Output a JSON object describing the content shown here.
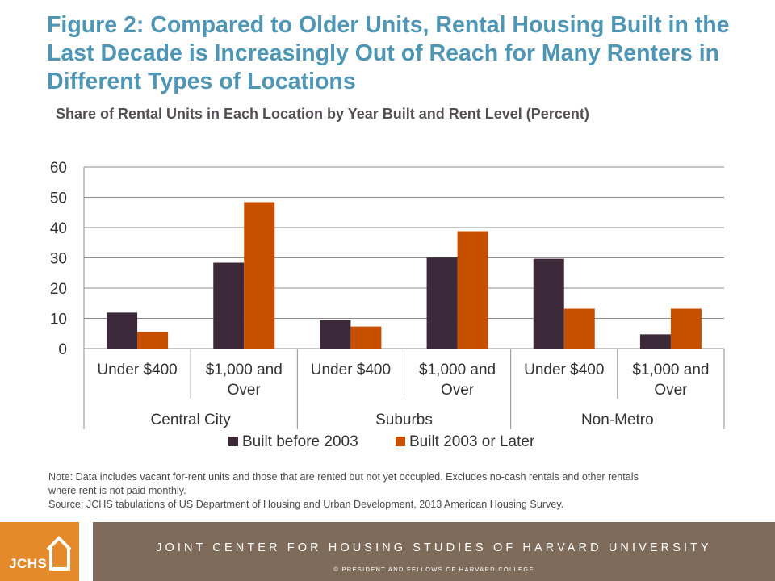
{
  "title": "Figure 2: Compared to Older Units, Rental Housing Built in the Last Decade is Increasingly Out of Reach for Many Renters in Different Types of Locations",
  "subtitle": "Share of Rental Units in Each Location by Year Built and Rent Level (Percent)",
  "chart_data": {
    "type": "bar",
    "title": "Share of Rental Units in Each Location by Year Built and Rent Level (Percent)",
    "xlabel": "",
    "ylabel": "",
    "ylim": [
      0,
      60
    ],
    "yticks": [
      0,
      10,
      20,
      30,
      40,
      50,
      60
    ],
    "grid": true,
    "legend_position": "bottom",
    "groups": [
      {
        "label": "Central City",
        "categories": [
          [
            "Under $400"
          ],
          [
            "$1,000 and",
            "Over"
          ]
        ]
      },
      {
        "label": "Suburbs",
        "categories": [
          [
            "Under $400"
          ],
          [
            "$1,000 and",
            "Over"
          ]
        ]
      },
      {
        "label": "Non-Metro",
        "categories": [
          [
            "Under $400"
          ],
          [
            "$1,000 and",
            "Over"
          ]
        ]
      }
    ],
    "categories": [
      "Central City - Under $400",
      "Central City - $1,000 and Over",
      "Suburbs - Under $400",
      "Suburbs - $1,000 and Over",
      "Non-Metro - Under $400",
      "Non-Metro - $1,000 and Over"
    ],
    "series": [
      {
        "name": "Built before 2003",
        "color": "#3c2a3b",
        "values": [
          11.9,
          28.4,
          9.4,
          30.1,
          29.7,
          4.7
        ]
      },
      {
        "name": "Built 2003 or Later",
        "color": "#c65000",
        "values": [
          5.5,
          48.4,
          7.3,
          38.8,
          13.2,
          13.2
        ]
      }
    ]
  },
  "notes": {
    "line1": "Note: Data includes vacant for-rent units and those that are rented but not yet occupied. Excludes no-cash rentals and other rentals",
    "line2": "where rent is not paid monthly.",
    "line3": "Source: JCHS tabulations of US Department of Housing and Urban Development, 2013 American Housing Survey."
  },
  "footer": {
    "logo_text": "JCHS",
    "title": "JOINT CENTER FOR HOUSING STUDIES OF HARVARD UNIVERSITY",
    "copyright": "© PRESIDENT AND FELLOWS OF HARVARD COLLEGE",
    "logo_color": "#e58a2b",
    "band_color": "#7e6b5a"
  }
}
